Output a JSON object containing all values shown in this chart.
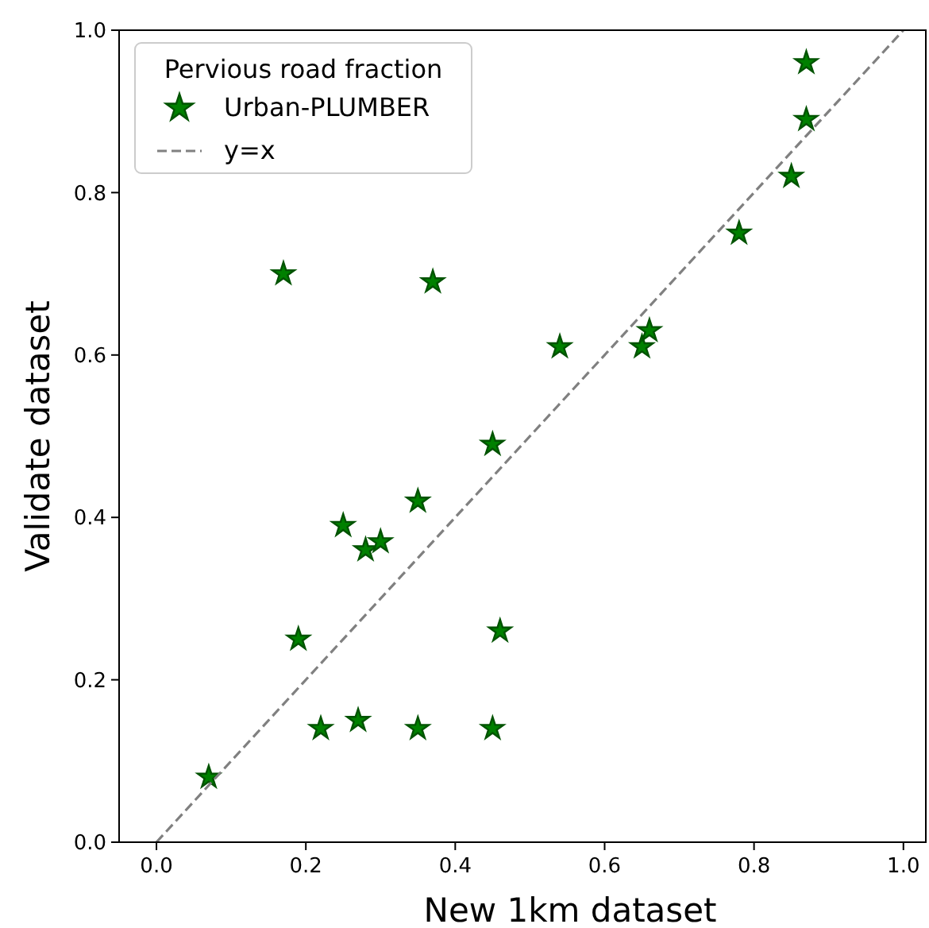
{
  "chart_data": {
    "type": "scatter",
    "xlabel": "New 1km dataset",
    "ylabel": "Validate dataset",
    "legend_title": "Pervious road fraction",
    "legend": "top left",
    "grid": false,
    "xlim": [
      -0.05,
      1.03
    ],
    "ylim": [
      0,
      1
    ],
    "xticks": [
      {
        "value": 0,
        "label": "0.0"
      },
      {
        "value": 0.2,
        "label": "0.2"
      },
      {
        "value": 0.4,
        "label": "0.4"
      },
      {
        "value": 0.6,
        "label": "0.6"
      },
      {
        "value": 0.8,
        "label": "0.8"
      },
      {
        "value": 1,
        "label": "1.0"
      }
    ],
    "yticks": [
      {
        "value": 0,
        "label": "0.0"
      },
      {
        "value": 0.2,
        "label": "0.2"
      },
      {
        "value": 0.4,
        "label": "0.4"
      },
      {
        "value": 0.6,
        "label": "0.6"
      },
      {
        "value": 0.8,
        "label": "0.8"
      },
      {
        "value": 1,
        "label": "1.0"
      }
    ],
    "series": [
      {
        "name": "Urban-PLUMBER",
        "marker": "star",
        "color": "#008000",
        "x": [
          0.07,
          0.17,
          0.19,
          0.22,
          0.25,
          0.27,
          0.28,
          0.3,
          0.35,
          0.35,
          0.37,
          0.45,
          0.45,
          0.46,
          0.54,
          0.65,
          0.66,
          0.78,
          0.85,
          0.87,
          0.87
        ],
        "values": [
          0.08,
          0.7,
          0.25,
          0.14,
          0.39,
          0.15,
          0.36,
          0.37,
          0.42,
          0.14,
          0.69,
          0.49,
          0.14,
          0.26,
          0.61,
          0.61,
          0.63,
          0.75,
          0.82,
          0.89,
          0.96
        ]
      },
      {
        "name": "y=x",
        "type": "line",
        "line_style": "dashed",
        "color": "#808080",
        "x": [
          0,
          1
        ],
        "values": [
          0,
          1
        ]
      }
    ]
  }
}
